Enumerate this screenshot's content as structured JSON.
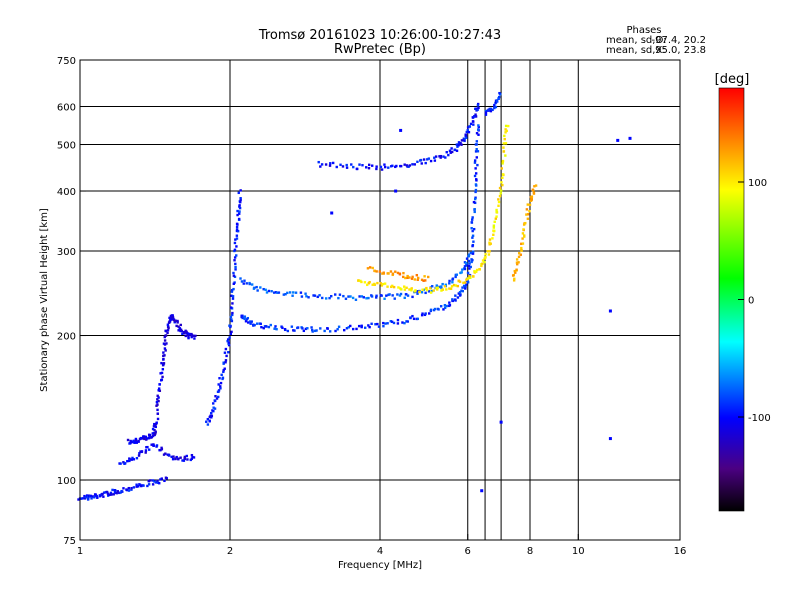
{
  "chart_data": {
    "type": "scatter",
    "title": "Tromsø 20161023 10:26:00-10:27:43",
    "subtitle": "RwPretec (Bp)",
    "xlabel": "Frequency [MHz]",
    "ylabel": "Stationary phase Virtual Height [km]",
    "xscale": "log",
    "yscale": "log",
    "xlim": [
      1,
      16
    ],
    "ylim": [
      75,
      750
    ],
    "x_ticks": [
      1,
      2,
      4,
      6,
      8,
      10,
      16
    ],
    "y_ticks": [
      75,
      100,
      200,
      300,
      400,
      500,
      600,
      750
    ],
    "grid": true,
    "stats": {
      "title": "Phases",
      "o_label": "mean, sd,O:",
      "o_values": "-97.4, 20.2",
      "x_label": "mean, sd,X:",
      "x_values": "95.0, 23.8"
    },
    "colorbar": {
      "label": "[deg]",
      "range": [
        -180,
        180
      ],
      "ticks": [
        -100,
        0,
        100
      ]
    },
    "traces": [
      {
        "kind": "curve",
        "phase": -100,
        "points": [
          [
            1.0,
            92
          ],
          [
            1.05,
            92
          ],
          [
            1.1,
            93
          ],
          [
            1.15,
            94
          ],
          [
            1.2,
            95
          ],
          [
            1.3,
            97
          ],
          [
            1.4,
            99
          ],
          [
            1.5,
            100
          ]
        ]
      },
      {
        "kind": "curve",
        "phase": -110,
        "points": [
          [
            1.25,
            120
          ],
          [
            1.3,
            121
          ],
          [
            1.35,
            122
          ],
          [
            1.4,
            124
          ],
          [
            1.42,
            130
          ],
          [
            1.44,
            150
          ],
          [
            1.46,
            170
          ],
          [
            1.48,
            190
          ],
          [
            1.5,
            210
          ],
          [
            1.52,
            220
          ],
          [
            1.55,
            215
          ],
          [
            1.6,
            205
          ],
          [
            1.65,
            200
          ],
          [
            1.7,
            198
          ]
        ]
      },
      {
        "kind": "curve",
        "phase": -105,
        "points": [
          [
            1.2,
            108
          ],
          [
            1.3,
            112
          ],
          [
            1.4,
            118
          ],
          [
            1.5,
            113
          ],
          [
            1.6,
            110
          ],
          [
            1.7,
            112
          ]
        ]
      },
      {
        "kind": "curve",
        "phase": -95,
        "points": [
          [
            1.8,
            130
          ],
          [
            1.85,
            140
          ],
          [
            1.9,
            155
          ],
          [
            1.95,
            175
          ],
          [
            2.0,
            200
          ],
          [
            2.02,
            230
          ],
          [
            2.04,
            270
          ],
          [
            2.06,
            320
          ],
          [
            2.08,
            360
          ],
          [
            2.1,
            400
          ]
        ]
      },
      {
        "kind": "curve",
        "phase": -90,
        "points": [
          [
            2.1,
            220
          ],
          [
            2.2,
            212
          ],
          [
            2.4,
            208
          ],
          [
            2.7,
            206
          ],
          [
            3.0,
            206
          ],
          [
            3.5,
            207
          ],
          [
            4.0,
            210
          ],
          [
            4.5,
            215
          ],
          [
            5.0,
            222
          ],
          [
            5.5,
            232
          ],
          [
            5.8,
            245
          ],
          [
            6.0,
            260
          ],
          [
            6.1,
            290
          ],
          [
            6.15,
            340
          ],
          [
            6.2,
            400
          ],
          [
            6.25,
            480
          ],
          [
            6.3,
            560
          ]
        ]
      },
      {
        "kind": "curve",
        "phase": -80,
        "points": [
          [
            2.1,
            260
          ],
          [
            2.3,
            250
          ],
          [
            2.6,
            245
          ],
          [
            3.0,
            242
          ],
          [
            3.5,
            240
          ],
          [
            4.0,
            240
          ],
          [
            4.5,
            242
          ],
          [
            5.0,
            248
          ],
          [
            5.5,
            258
          ],
          [
            5.9,
            275
          ],
          [
            6.1,
            300
          ]
        ]
      },
      {
        "kind": "curve",
        "phase": 100,
        "points": [
          [
            3.6,
            258
          ],
          [
            4.0,
            255
          ],
          [
            4.5,
            250
          ],
          [
            5.0,
            248
          ],
          [
            5.5,
            252
          ],
          [
            6.0,
            262
          ],
          [
            6.3,
            275
          ],
          [
            6.6,
            300
          ],
          [
            6.8,
            340
          ],
          [
            7.0,
            400
          ],
          [
            7.1,
            480
          ],
          [
            7.2,
            560
          ]
        ]
      },
      {
        "kind": "curve",
        "phase": 130,
        "points": [
          [
            3.8,
            275
          ],
          [
            4.2,
            270
          ],
          [
            4.6,
            265
          ],
          [
            5.0,
            262
          ]
        ]
      },
      {
        "kind": "curve",
        "phase": -100,
        "points": [
          [
            3.0,
            455
          ],
          [
            3.5,
            450
          ],
          [
            4.0,
            448
          ],
          [
            4.5,
            452
          ],
          [
            5.0,
            462
          ],
          [
            5.5,
            478
          ],
          [
            5.8,
            500
          ],
          [
            6.0,
            530
          ],
          [
            6.2,
            570
          ],
          [
            6.3,
            610
          ]
        ]
      },
      {
        "kind": "curve",
        "phase": 120,
        "points": [
          [
            7.4,
            260
          ],
          [
            7.6,
            290
          ],
          [
            7.8,
            330
          ],
          [
            8.0,
            380
          ],
          [
            8.2,
            410
          ]
        ]
      },
      {
        "kind": "curve",
        "phase": -90,
        "points": [
          [
            6.5,
            580
          ],
          [
            6.8,
            600
          ],
          [
            7.0,
            640
          ]
        ]
      },
      {
        "kind": "point",
        "phase": -100,
        "points": [
          [
            12.0,
            510
          ],
          [
            12.7,
            515
          ],
          [
            11.6,
            225
          ],
          [
            11.6,
            122
          ],
          [
            6.4,
            95
          ],
          [
            7.0,
            132
          ],
          [
            3.2,
            360
          ],
          [
            4.3,
            400
          ],
          [
            4.4,
            535
          ]
        ]
      }
    ]
  }
}
